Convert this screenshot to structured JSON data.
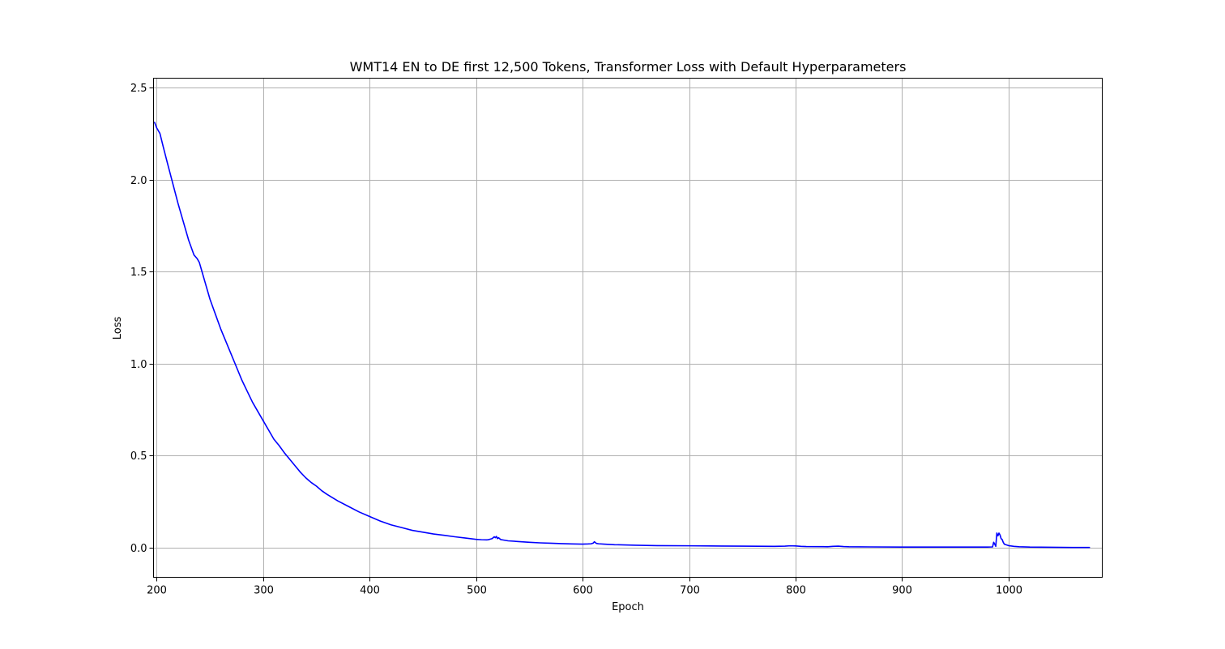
{
  "chart_data": {
    "type": "line",
    "title": "WMT14 EN to DE first 12,500 Tokens, Transformer Loss with Default Hyperparameters",
    "xlabel": "Epoch",
    "ylabel": "Loss",
    "xlim": [
      197,
      1088
    ],
    "ylim": [
      -0.16,
      2.55
    ],
    "xticks": [
      200,
      300,
      400,
      500,
      600,
      700,
      800,
      900,
      1000
    ],
    "yticks": [
      0.0,
      0.5,
      1.0,
      1.5,
      2.0,
      2.5
    ],
    "xtick_labels": [
      "200",
      "300",
      "400",
      "500",
      "600",
      "700",
      "800",
      "900",
      "1000"
    ],
    "ytick_labels": [
      "0.0",
      "0.5",
      "1.0",
      "1.5",
      "2.0",
      "2.5"
    ],
    "grid": true,
    "series": [
      {
        "color": "#0000ff",
        "x": [
          198,
          200,
          203,
          206,
          210,
          215,
          220,
          225,
          230,
          235,
          238,
          240,
          242,
          245,
          250,
          255,
          260,
          265,
          270,
          275,
          280,
          285,
          290,
          295,
          300,
          305,
          310,
          315,
          320,
          325,
          330,
          335,
          340,
          345,
          350,
          355,
          360,
          370,
          380,
          390,
          400,
          410,
          420,
          430,
          440,
          450,
          460,
          470,
          480,
          490,
          500,
          505,
          510,
          512,
          515,
          517,
          518,
          519,
          520,
          521,
          523,
          525,
          530,
          540,
          550,
          560,
          570,
          580,
          590,
          600,
          605,
          608,
          610,
          611,
          612,
          613,
          615,
          620,
          630,
          650,
          670,
          700,
          720,
          750,
          780,
          790,
          795,
          800,
          805,
          810,
          830,
          835,
          840,
          845,
          850,
          870,
          900,
          930,
          950,
          970,
          980,
          985,
          986,
          987,
          988,
          989,
          990,
          991,
          992,
          993,
          994,
          995,
          996,
          998,
          1000,
          1005,
          1010,
          1020,
          1040,
          1060,
          1076
        ],
        "y": [
          2.31,
          2.28,
          2.25,
          2.18,
          2.09,
          1.98,
          1.87,
          1.77,
          1.67,
          1.59,
          1.57,
          1.55,
          1.51,
          1.45,
          1.35,
          1.27,
          1.19,
          1.12,
          1.05,
          0.98,
          0.91,
          0.85,
          0.79,
          0.74,
          0.69,
          0.64,
          0.59,
          0.555,
          0.515,
          0.48,
          0.445,
          0.41,
          0.38,
          0.355,
          0.335,
          0.31,
          0.29,
          0.255,
          0.225,
          0.195,
          0.17,
          0.145,
          0.125,
          0.11,
          0.095,
          0.085,
          0.075,
          0.068,
          0.06,
          0.053,
          0.046,
          0.044,
          0.043,
          0.045,
          0.05,
          0.06,
          0.055,
          0.062,
          0.05,
          0.055,
          0.045,
          0.043,
          0.038,
          0.034,
          0.03,
          0.027,
          0.025,
          0.023,
          0.021,
          0.02,
          0.021,
          0.022,
          0.026,
          0.033,
          0.028,
          0.024,
          0.022,
          0.02,
          0.017,
          0.014,
          0.012,
          0.011,
          0.01,
          0.009,
          0.008,
          0.009,
          0.011,
          0.01,
          0.008,
          0.007,
          0.006,
          0.008,
          0.009,
          0.007,
          0.006,
          0.005,
          0.004,
          0.004,
          0.004,
          0.004,
          0.004,
          0.005,
          0.03,
          0.02,
          0.008,
          0.08,
          0.065,
          0.08,
          0.07,
          0.05,
          0.045,
          0.03,
          0.02,
          0.016,
          0.012,
          0.008,
          0.006,
          0.004,
          0.003,
          0.002,
          0.002
        ]
      }
    ]
  }
}
